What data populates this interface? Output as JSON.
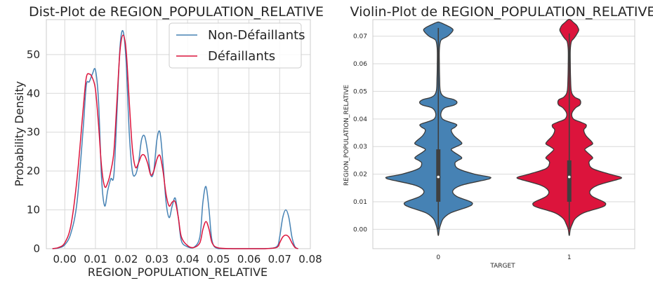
{
  "chart_data": [
    {
      "type": "line",
      "title": "Dist-Plot de REGION_POPULATION_RELATIVE",
      "xlabel": "REGION_POPULATION_RELATIVE",
      "ylabel": "Probability Density",
      "xlim": [
        -0.006,
        0.08
      ],
      "ylim": [
        0,
        59
      ],
      "xticks": [
        "0.00",
        "0.01",
        "0.02",
        "0.03",
        "0.04",
        "0.05",
        "0.06",
        "0.07",
        "0.08"
      ],
      "xtick_values": [
        0.0,
        0.01,
        0.02,
        0.03,
        0.04,
        0.05,
        0.06,
        0.07,
        0.08
      ],
      "yticks": [
        "0",
        "10",
        "20",
        "30",
        "40",
        "50"
      ],
      "ytick_values": [
        0,
        10,
        20,
        30,
        40,
        50
      ],
      "grid": true,
      "legend": "top-right",
      "series": [
        {
          "name": "Non-Défaillants",
          "color": "#4682b4",
          "x": [
            -0.004,
            -0.002,
            0.0,
            0.002,
            0.004,
            0.006,
            0.007,
            0.008,
            0.009,
            0.01,
            0.011,
            0.012,
            0.013,
            0.014,
            0.015,
            0.016,
            0.017,
            0.018,
            0.019,
            0.02,
            0.021,
            0.022,
            0.023,
            0.024,
            0.025,
            0.026,
            0.027,
            0.028,
            0.029,
            0.03,
            0.031,
            0.032,
            0.033,
            0.034,
            0.035,
            0.036,
            0.037,
            0.038,
            0.04,
            0.042,
            0.044,
            0.045,
            0.046,
            0.047,
            0.048,
            0.05,
            0.055,
            0.06,
            0.065,
            0.069,
            0.07,
            0.071,
            0.072,
            0.073,
            0.074,
            0.075,
            0.076
          ],
          "y": [
            0,
            0.2,
            1,
            4,
            12,
            31,
            42,
            43,
            45,
            46,
            38,
            18,
            11,
            15,
            18,
            19,
            35,
            52,
            56,
            48,
            30,
            20,
            19,
            22,
            28,
            29,
            25,
            19,
            20,
            28,
            30,
            22,
            12,
            8,
            11,
            13,
            8,
            2,
            0.5,
            0.3,
            3,
            12,
            16,
            10,
            2,
            0,
            0,
            0,
            0,
            0.5,
            3,
            8,
            10,
            8,
            3,
            0.5,
            0
          ]
        },
        {
          "name": "Défaillants",
          "color": "#dc143c",
          "x": [
            -0.004,
            -0.002,
            0.0,
            0.002,
            0.004,
            0.006,
            0.007,
            0.008,
            0.009,
            0.01,
            0.011,
            0.012,
            0.013,
            0.014,
            0.015,
            0.016,
            0.017,
            0.018,
            0.019,
            0.02,
            0.021,
            0.022,
            0.023,
            0.024,
            0.025,
            0.026,
            0.027,
            0.028,
            0.029,
            0.03,
            0.031,
            0.032,
            0.033,
            0.034,
            0.035,
            0.036,
            0.037,
            0.038,
            0.04,
            0.042,
            0.044,
            0.045,
            0.046,
            0.047,
            0.048,
            0.05,
            0.055,
            0.06,
            0.065,
            0.069,
            0.07,
            0.071,
            0.072,
            0.073,
            0.074,
            0.075,
            0.076
          ],
          "y": [
            0,
            0.3,
            1.5,
            6,
            18,
            36,
            44,
            45,
            44,
            41,
            32,
            21,
            16,
            17,
            20,
            25,
            38,
            51,
            55,
            51,
            38,
            26,
            21,
            22,
            24,
            24,
            22,
            19,
            20,
            23,
            24,
            20,
            14,
            11,
            12,
            12,
            8,
            3,
            0.8,
            0.3,
            1.5,
            5,
            7,
            5,
            1.5,
            0.2,
            0,
            0,
            0,
            0.3,
            1.5,
            3,
            3.5,
            3,
            1.5,
            0.3,
            0
          ]
        }
      ]
    },
    {
      "type": "violin",
      "title": "Violin-Plot de REGION_POPULATION_RELATIVE",
      "xlabel": "TARGET",
      "ylabel": "REGION_POPULATION_RELATIVE",
      "categories": [
        "0",
        "1"
      ],
      "ylim": [
        -0.007,
        0.076
      ],
      "yticks": [
        "0.00",
        "0.01",
        "0.02",
        "0.03",
        "0.04",
        "0.05",
        "0.06",
        "0.07"
      ],
      "ytick_values": [
        0.0,
        0.01,
        0.02,
        0.03,
        0.04,
        0.05,
        0.06,
        0.07
      ],
      "grid": true,
      "violins": [
        {
          "category": "0",
          "color": "#4682b4",
          "ymin": -0.002,
          "ymax": 0.075,
          "q1": 0.01,
          "median": 0.019,
          "q3": 0.029,
          "whisker_low": 0.0,
          "whisker_high": 0.073,
          "profile_y": [
            -0.002,
            0.0,
            0.002,
            0.004,
            0.006,
            0.008,
            0.009,
            0.01,
            0.012,
            0.014,
            0.016,
            0.018,
            0.0185,
            0.019,
            0.02,
            0.022,
            0.024,
            0.025,
            0.026,
            0.028,
            0.029,
            0.03,
            0.031,
            0.032,
            0.034,
            0.036,
            0.037,
            0.038,
            0.039,
            0.04,
            0.042,
            0.044,
            0.045,
            0.046,
            0.047,
            0.048,
            0.05,
            0.055,
            0.06,
            0.065,
            0.068,
            0.069,
            0.07,
            0.072,
            0.073,
            0.074,
            0.075
          ],
          "profile_w": [
            0.005,
            0.02,
            0.05,
            0.1,
            0.24,
            0.55,
            0.65,
            0.62,
            0.35,
            0.28,
            0.45,
            0.92,
            1.0,
            0.98,
            0.7,
            0.38,
            0.32,
            0.38,
            0.45,
            0.3,
            0.25,
            0.35,
            0.45,
            0.42,
            0.3,
            0.25,
            0.32,
            0.35,
            0.2,
            0.08,
            0.05,
            0.12,
            0.3,
            0.36,
            0.3,
            0.12,
            0.04,
            0.025,
            0.02,
            0.02,
            0.04,
            0.08,
            0.18,
            0.28,
            0.25,
            0.15,
            0.03
          ]
        },
        {
          "category": "1",
          "color": "#dc143c",
          "ymin": -0.002,
          "ymax": 0.076,
          "q1": 0.01,
          "median": 0.019,
          "q3": 0.025,
          "whisker_low": 0.0,
          "whisker_high": 0.071,
          "profile_y": [
            -0.002,
            0.0,
            0.002,
            0.004,
            0.006,
            0.008,
            0.009,
            0.01,
            0.012,
            0.014,
            0.016,
            0.018,
            0.0185,
            0.019,
            0.02,
            0.022,
            0.024,
            0.025,
            0.026,
            0.028,
            0.029,
            0.03,
            0.031,
            0.032,
            0.034,
            0.036,
            0.037,
            0.038,
            0.039,
            0.04,
            0.042,
            0.044,
            0.045,
            0.046,
            0.047,
            0.048,
            0.05,
            0.055,
            0.06,
            0.065,
            0.068,
            0.069,
            0.07,
            0.072,
            0.073,
            0.074,
            0.075,
            0.076
          ],
          "profile_w": [
            0.005,
            0.02,
            0.06,
            0.12,
            0.28,
            0.62,
            0.7,
            0.66,
            0.44,
            0.4,
            0.55,
            0.92,
            1.0,
            0.98,
            0.78,
            0.45,
            0.38,
            0.4,
            0.45,
            0.34,
            0.3,
            0.37,
            0.45,
            0.42,
            0.32,
            0.28,
            0.32,
            0.32,
            0.2,
            0.08,
            0.05,
            0.12,
            0.2,
            0.22,
            0.2,
            0.1,
            0.04,
            0.025,
            0.02,
            0.02,
            0.04,
            0.08,
            0.12,
            0.18,
            0.17,
            0.14,
            0.08,
            0.02
          ]
        }
      ]
    }
  ]
}
